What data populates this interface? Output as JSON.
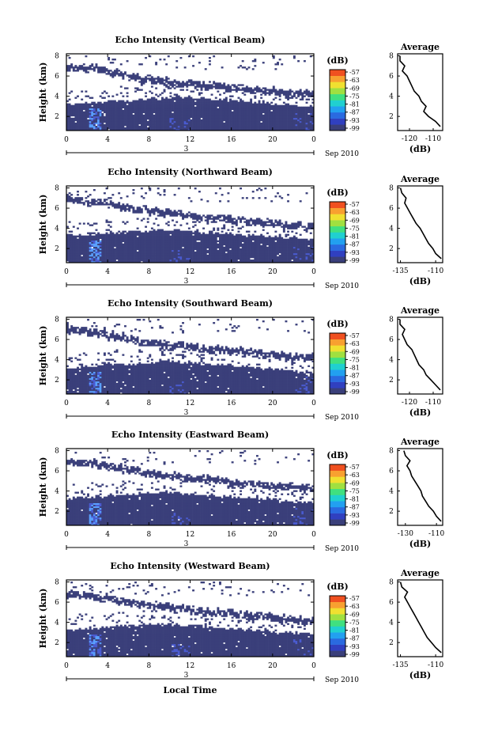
{
  "colors": {
    "base": "#3a3f7a",
    "light": "#4a5bd0",
    "bright": "#5aa0ff",
    "colorbar": [
      "#3a3f7a",
      "#3040c0",
      "#2a6ae0",
      "#22a0f0",
      "#20d0d0",
      "#40e080",
      "#a0e040",
      "#f0e030",
      "#f8a030",
      "#f05020"
    ]
  },
  "chart_data": [
    {
      "type": "heatmap",
      "title": "Echo Intensity (Vertical Beam)",
      "ylabel": "Height (km)",
      "x_ticks": [
        "0",
        "4",
        "8",
        "12",
        "16",
        "20",
        "0"
      ],
      "y_ticks": [
        "2",
        "4",
        "6",
        "8"
      ],
      "date_label": "3",
      "date_right": "Sep 2010",
      "xlim": [
        0,
        24
      ],
      "ylim": [
        0.6,
        8.2
      ],
      "colorbar": {
        "unit": "(dB)",
        "ticks": [
          "-57",
          "-63",
          "-69",
          "-75",
          "-81",
          "-87",
          "-93",
          "-99"
        ]
      },
      "top_base_km": [
        3.2,
        3.3,
        3.3,
        3.4,
        3.5,
        3.6,
        3.6,
        3.7,
        3.8,
        3.8,
        3.9,
        3.9,
        3.8,
        3.8,
        3.7,
        3.6,
        3.5,
        3.5,
        3.4,
        3.3,
        3.2,
        3.1,
        3.0,
        3.0
      ],
      "cloud_top_km": [
        6.6,
        6.5,
        6.4,
        6.2,
        6.0,
        5.8,
        5.6,
        5.4,
        5.3,
        5.2,
        5.1,
        5.0,
        4.9,
        4.8,
        4.7,
        4.6,
        4.5,
        4.4,
        4.3,
        4.2,
        4.2,
        4.1,
        4.0,
        4.0
      ],
      "profile": {
        "title": "Average",
        "xlabel": "(dB)",
        "x_ticks": [
          "-120",
          "-110"
        ],
        "xlim": [
          -125,
          -106
        ],
        "height_km": [
          1.0,
          1.5,
          2.0,
          2.5,
          3.0,
          3.5,
          4.0,
          4.5,
          5.0,
          5.5,
          6.0,
          6.5,
          7.0,
          7.5,
          8.0
        ],
        "value_db": [
          -107,
          -109,
          -112,
          -114,
          -113,
          -115,
          -116,
          -118,
          -119,
          -120,
          -121,
          -123,
          -122,
          -124,
          -124
        ]
      }
    },
    {
      "type": "heatmap",
      "title": "Echo Intensity (Northward Beam)",
      "ylabel": "Height (km)",
      "x_ticks": [
        "0",
        "4",
        "8",
        "12",
        "16",
        "20",
        "0"
      ],
      "y_ticks": [
        "2",
        "4",
        "6",
        "8"
      ],
      "date_label": "3",
      "date_right": "Sep 2010",
      "xlim": [
        0,
        24
      ],
      "ylim": [
        0.6,
        8.2
      ],
      "colorbar": {
        "unit": "(dB)",
        "ticks": [
          "-57",
          "-63",
          "-69",
          "-75",
          "-81",
          "-87",
          "-93",
          "-99"
        ]
      },
      "top_base_km": [
        3.3,
        3.3,
        3.4,
        3.5,
        3.6,
        3.6,
        3.7,
        3.7,
        3.8,
        3.8,
        3.8,
        3.7,
        3.7,
        3.6,
        3.5,
        3.5,
        3.4,
        3.3,
        3.3,
        3.2,
        3.1,
        3.0,
        3.0,
        2.9
      ],
      "cloud_top_km": [
        6.5,
        6.4,
        6.3,
        6.2,
        6.0,
        5.8,
        5.6,
        5.5,
        5.4,
        5.2,
        5.1,
        5.0,
        4.9,
        4.8,
        4.7,
        4.6,
        4.5,
        4.4,
        4.3,
        4.2,
        4.1,
        4.0,
        4.0,
        3.9
      ],
      "profile": {
        "title": "Average",
        "xlabel": "(dB)",
        "x_ticks": [
          "-135",
          "-110"
        ],
        "xlim": [
          -137,
          -105
        ],
        "height_km": [
          1.0,
          1.5,
          2.0,
          2.5,
          3.0,
          3.5,
          4.0,
          4.5,
          5.0,
          5.5,
          6.0,
          6.5,
          7.0,
          7.5,
          8.0
        ],
        "value_db": [
          -106,
          -110,
          -112,
          -115,
          -117,
          -119,
          -121,
          -124,
          -126,
          -128,
          -130,
          -132,
          -131,
          -134,
          -135
        ]
      }
    },
    {
      "type": "heatmap",
      "title": "Echo Intensity (Southward Beam)",
      "ylabel": "Height (km)",
      "x_ticks": [
        "0",
        "4",
        "8",
        "12",
        "16",
        "20",
        "0"
      ],
      "y_ticks": [
        "2",
        "4",
        "6",
        "8"
      ],
      "date_label": "3",
      "date_right": "Sep 2010",
      "xlim": [
        0,
        24
      ],
      "ylim": [
        0.6,
        8.2
      ],
      "colorbar": {
        "unit": "(dB)",
        "ticks": [
          "-57",
          "-63",
          "-69",
          "-75",
          "-81",
          "-87",
          "-93",
          "-99"
        ]
      },
      "top_base_km": [
        3.2,
        3.3,
        3.4,
        3.5,
        3.6,
        3.6,
        3.6,
        3.7,
        3.7,
        3.8,
        3.8,
        3.7,
        3.7,
        3.6,
        3.5,
        3.5,
        3.4,
        3.3,
        3.2,
        3.1,
        3.0,
        2.9,
        2.8,
        2.8
      ],
      "cloud_top_km": [
        6.7,
        6.6,
        6.4,
        6.2,
        6.0,
        5.8,
        5.6,
        5.5,
        5.4,
        5.2,
        5.1,
        5.0,
        4.9,
        4.8,
        4.7,
        4.6,
        4.5,
        4.4,
        4.3,
        4.2,
        4.1,
        4.0,
        3.9,
        3.9
      ],
      "profile": {
        "title": "Average",
        "xlabel": "(dB)",
        "x_ticks": [
          "-120",
          "-110"
        ],
        "xlim": [
          -125,
          -106
        ],
        "height_km": [
          1.0,
          1.5,
          2.0,
          2.5,
          3.0,
          3.5,
          4.0,
          4.5,
          5.0,
          5.5,
          6.0,
          6.5,
          7.0,
          7.5,
          8.0
        ],
        "value_db": [
          -107,
          -109,
          -111,
          -113,
          -114,
          -116,
          -117,
          -118,
          -119,
          -121,
          -122,
          -123,
          -122,
          -124,
          -124
        ]
      }
    },
    {
      "type": "heatmap",
      "title": "Echo Intensity (Eastward Beam)",
      "ylabel": "Height (km)",
      "x_ticks": [
        "0",
        "4",
        "8",
        "12",
        "16",
        "20",
        "0"
      ],
      "y_ticks": [
        "2",
        "4",
        "6",
        "8"
      ],
      "date_label": "3",
      "date_right": "Sep 2010",
      "xlim": [
        0,
        24
      ],
      "ylim": [
        0.6,
        8.2
      ],
      "colorbar": {
        "unit": "(dB)",
        "ticks": [
          "-57",
          "-63",
          "-69",
          "-75",
          "-81",
          "-87",
          "-93",
          "-99"
        ]
      },
      "top_base_km": [
        3.3,
        3.3,
        3.4,
        3.5,
        3.6,
        3.7,
        3.7,
        3.8,
        3.8,
        3.9,
        3.8,
        3.8,
        3.7,
        3.6,
        3.6,
        3.5,
        3.4,
        3.3,
        3.3,
        3.2,
        3.1,
        3.0,
        2.9,
        2.9
      ],
      "cloud_top_km": [
        6.6,
        6.5,
        6.4,
        6.3,
        6.1,
        5.9,
        5.7,
        5.5,
        5.4,
        5.3,
        5.2,
        5.0,
        4.9,
        4.8,
        4.7,
        4.6,
        4.5,
        4.4,
        4.3,
        4.2,
        4.1,
        4.1,
        4.0,
        4.0
      ],
      "profile": {
        "title": "Average",
        "xlabel": "(dB)",
        "x_ticks": [
          "-130",
          "-110"
        ],
        "xlim": [
          -135,
          -106
        ],
        "height_km": [
          1.0,
          1.5,
          2.0,
          2.5,
          3.0,
          3.5,
          4.0,
          4.5,
          5.0,
          5.5,
          6.0,
          6.5,
          7.0,
          7.5,
          8.0
        ],
        "value_db": [
          -107,
          -110,
          -112,
          -115,
          -117,
          -119,
          -120,
          -122,
          -124,
          -126,
          -127,
          -129,
          -127,
          -130,
          -131
        ]
      }
    },
    {
      "type": "heatmap",
      "title": "Echo Intensity (Westward Beam)",
      "ylabel": "Height (km)",
      "xlabel": "Local Time",
      "x_ticks": [
        "0",
        "4",
        "8",
        "12",
        "16",
        "20",
        "0"
      ],
      "y_ticks": [
        "2",
        "4",
        "6",
        "8"
      ],
      "date_label": "3",
      "date_right": "Sep 2010",
      "xlim": [
        0,
        24
      ],
      "ylim": [
        0.6,
        8.2
      ],
      "colorbar": {
        "unit": "(dB)",
        "ticks": [
          "-57",
          "-63",
          "-69",
          "-75",
          "-81",
          "-87",
          "-93",
          "-99"
        ]
      },
      "top_base_km": [
        3.3,
        3.4,
        3.4,
        3.5,
        3.6,
        3.7,
        3.7,
        3.8,
        3.8,
        3.8,
        3.8,
        3.7,
        3.7,
        3.6,
        3.5,
        3.4,
        3.4,
        3.3,
        3.2,
        3.1,
        3.0,
        3.0,
        2.9,
        2.9
      ],
      "cloud_top_km": [
        6.5,
        6.4,
        6.3,
        6.1,
        6.0,
        5.8,
        5.6,
        5.5,
        5.3,
        5.2,
        5.1,
        5.0,
        4.9,
        4.8,
        4.7,
        4.6,
        4.5,
        4.4,
        4.3,
        4.2,
        4.1,
        4.0,
        4.0,
        3.9
      ],
      "profile": {
        "title": "Average",
        "xlabel": "(dB)",
        "x_ticks": [
          "-135",
          "-110"
        ],
        "xlim": [
          -137,
          -105
        ],
        "height_km": [
          1.0,
          1.5,
          2.0,
          2.5,
          3.0,
          3.5,
          4.0,
          4.5,
          5.0,
          5.5,
          6.0,
          6.5,
          7.0,
          7.5,
          8.0
        ],
        "value_db": [
          -106,
          -110,
          -113,
          -116,
          -118,
          -120,
          -122,
          -124,
          -126,
          -128,
          -130,
          -132,
          -130,
          -134,
          -135
        ]
      }
    }
  ]
}
